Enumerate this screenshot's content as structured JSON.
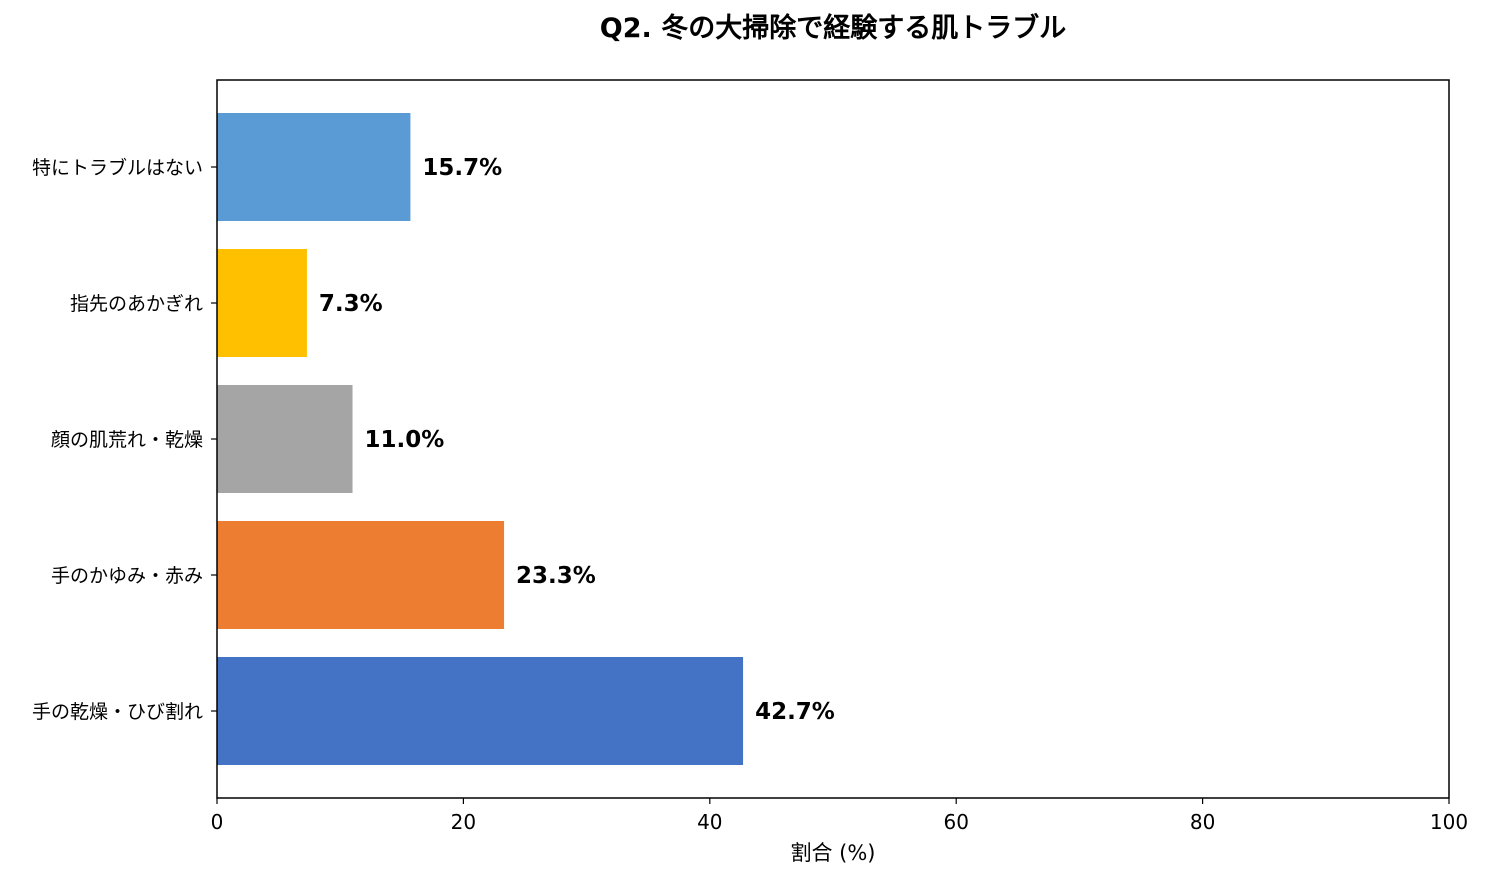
{
  "chart_data": {
    "type": "bar",
    "orientation": "horizontal",
    "title": "Q2. 冬の大掃除で経験する肌トラブル",
    "xlabel": "割合 (%)",
    "ylabel": "",
    "xlim": [
      0,
      100
    ],
    "xticks": [
      0,
      20,
      40,
      60,
      80,
      100
    ],
    "xtick_labels": [
      "0",
      "20",
      "40",
      "60",
      "80",
      "100"
    ],
    "grid": false,
    "categories": [
      "手の乾燥・ひび割れ",
      "手のかゆみ・赤み",
      "顔の肌荒れ・乾燥",
      "指先のあかぎれ",
      "特にトラブルはない"
    ],
    "values": [
      42.7,
      23.3,
      11.0,
      7.3,
      15.7
    ],
    "data_labels": [
      "42.7%",
      "23.3%",
      "11.0%",
      "7.3%",
      "15.7%"
    ],
    "colors": [
      "#4472C4",
      "#ED7D31",
      "#A5A5A5",
      "#FFC000",
      "#5B9BD5"
    ]
  }
}
